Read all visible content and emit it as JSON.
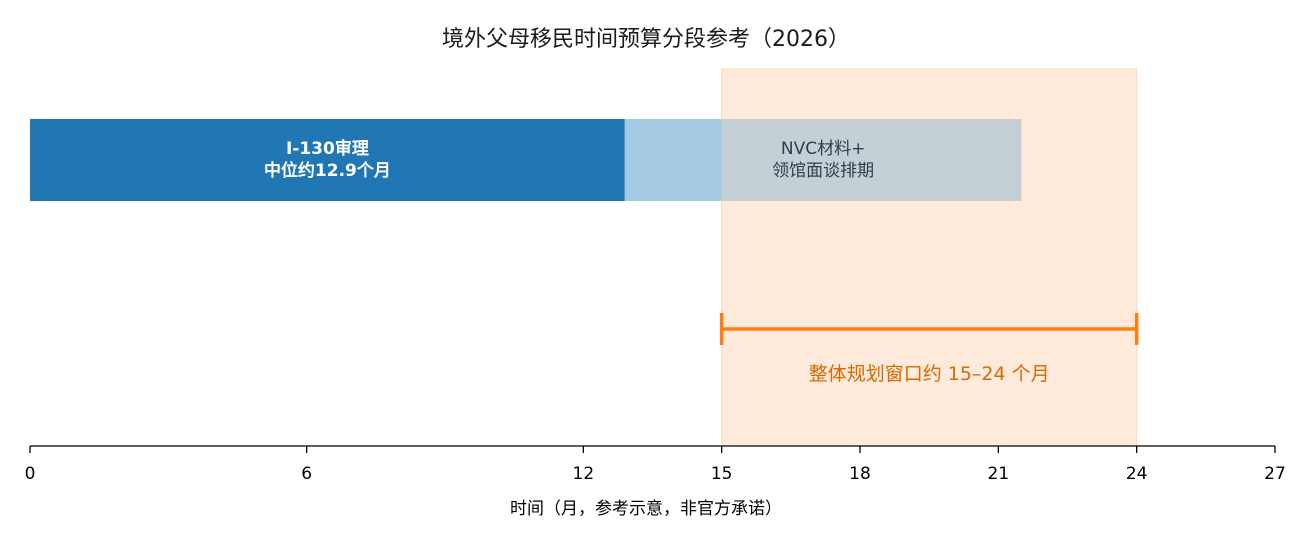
{
  "chart_data": {
    "type": "bar",
    "orientation": "horizontal",
    "title": "境外父母移民时间预算分段参考（2026）",
    "xlabel": "时间（月，参考示意，非官方承诺）",
    "ylabel": "",
    "xlim": [
      0,
      27
    ],
    "xticks": [
      0,
      6,
      12,
      15,
      18,
      21,
      24,
      27
    ],
    "grid": false,
    "segments": [
      {
        "label_lines": [
          "I-130审理",
          "中位约12.9个月"
        ],
        "start": 0,
        "end": 12.9,
        "color": "#2077b4",
        "text_color": "#ffffff",
        "bold": true
      },
      {
        "label_lines": [
          "NVC材料+",
          "领馆面谈排期"
        ],
        "start": 12.9,
        "end": 21.5,
        "color": "#a0c8e2",
        "text_color": "#2c3e50",
        "bold": false
      }
    ],
    "planning_window": {
      "start": 15,
      "end": 24,
      "label": "整体规划窗口约 15–24 个月",
      "shade_color": "#ffeadb",
      "line_color": "#ff7f0e",
      "text_color": "#d96a00"
    }
  }
}
